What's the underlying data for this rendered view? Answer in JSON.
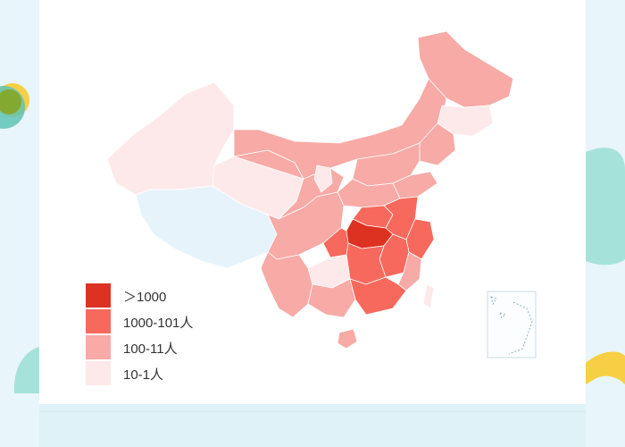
{
  "colors": {
    "background": "#e8f5fb",
    "level_4": "#dd3222",
    "level_3": "#f7695c",
    "level_2": "#f7aaa6",
    "level_1": "#fde9e9",
    "no_data": "#e6f3fb",
    "deco_yellow": "#f7cf45",
    "deco_teal": "#a5e3da",
    "deco_olive": "#86a525"
  },
  "legend": [
    {
      "label": "＞1000",
      "color": "#dd3222"
    },
    {
      "label": "1000-101人",
      "color": "#f7695c"
    },
    {
      "label": "100-11人",
      "color": "#f7aaa6"
    },
    {
      "label": "10-1人",
      "color": "#fde9e9"
    }
  ],
  "map": {
    "regions": [
      {
        "name": "xinjiang",
        "level": 1
      },
      {
        "name": "tibet",
        "level": 0
      },
      {
        "name": "qinghai",
        "level": 1
      },
      {
        "name": "inner-mongolia",
        "level": 2
      },
      {
        "name": "heilongjiang",
        "level": 2
      },
      {
        "name": "jilin",
        "level": 1
      },
      {
        "name": "liaoning",
        "level": 2
      },
      {
        "name": "gansu",
        "level": 2
      },
      {
        "name": "ningxia",
        "level": 1
      },
      {
        "name": "sichuan",
        "level": 2
      },
      {
        "name": "yunnan",
        "level": 2
      },
      {
        "name": "guizhou",
        "level": 1
      },
      {
        "name": "chongqing",
        "level": 3
      },
      {
        "name": "hubei",
        "level": 4
      },
      {
        "name": "henan",
        "level": 3
      },
      {
        "name": "hunan",
        "level": 3
      },
      {
        "name": "jiangxi",
        "level": 3
      },
      {
        "name": "anhui",
        "level": 3
      },
      {
        "name": "zhejiang",
        "level": 3
      },
      {
        "name": "guangdong",
        "level": 3
      },
      {
        "name": "guangxi",
        "level": 2
      },
      {
        "name": "fujian",
        "level": 2
      },
      {
        "name": "shandong",
        "level": 2
      },
      {
        "name": "hainan",
        "level": 2
      },
      {
        "name": "taiwan",
        "level": 1
      }
    ]
  }
}
